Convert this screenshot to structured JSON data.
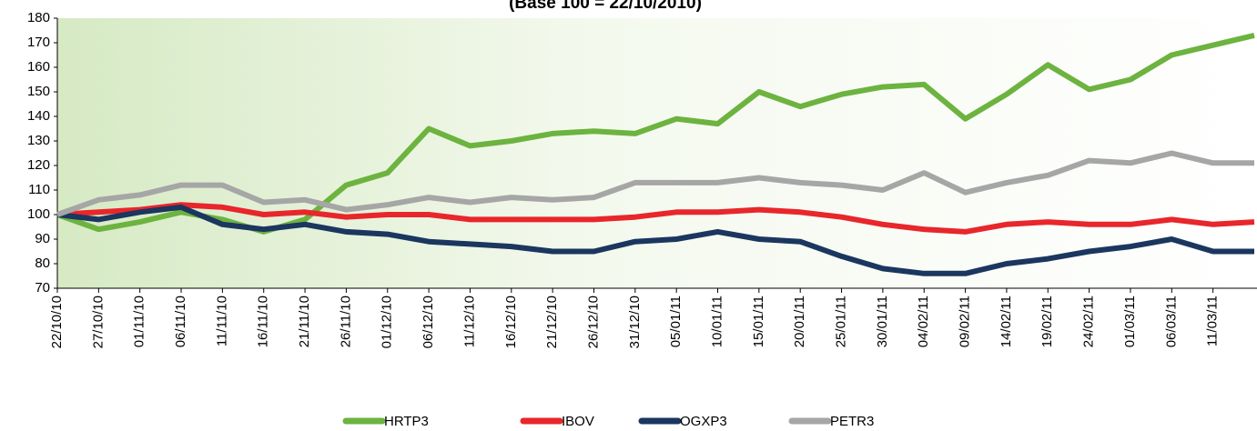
{
  "chart_data": {
    "type": "line",
    "title": "(Base 100 = 22/10/2010)",
    "categories": [
      "22/10/10",
      "27/10/10",
      "01/11/10",
      "06/11/10",
      "11/11/10",
      "16/11/10",
      "21/11/10",
      "26/11/10",
      "01/12/10",
      "06/12/10",
      "11/12/10",
      "16/12/10",
      "21/12/10",
      "26/12/10",
      "31/12/10",
      "05/01/11",
      "10/01/11",
      "15/01/11",
      "20/01/11",
      "25/01/11",
      "30/01/11",
      "04/02/11",
      "09/02/11",
      "14/02/11",
      "19/02/11",
      "24/02/11",
      "01/03/11",
      "06/03/11",
      "11/03/11",
      null
    ],
    "series": [
      {
        "name": "HRTP3",
        "color": "#6cb33f",
        "values": [
          100,
          94,
          97,
          101,
          98,
          93,
          98,
          112,
          117,
          135,
          128,
          130,
          133,
          134,
          133,
          139,
          137,
          150,
          144,
          149,
          152,
          153,
          139,
          149,
          161,
          151,
          155,
          165,
          169,
          173
        ]
      },
      {
        "name": "IBOV",
        "color": "#e8262b",
        "values": [
          100,
          101,
          102,
          104,
          103,
          100,
          101,
          99,
          100,
          100,
          98,
          98,
          98,
          98,
          99,
          101,
          101,
          102,
          101,
          99,
          96,
          94,
          93,
          96,
          97,
          96,
          96,
          98,
          96,
          97
        ]
      },
      {
        "name": "OGXP3",
        "color": "#1b365f",
        "values": [
          100,
          98,
          101,
          103,
          96,
          94,
          96,
          93,
          92,
          89,
          88,
          87,
          85,
          85,
          89,
          90,
          93,
          90,
          89,
          83,
          78,
          76,
          76,
          80,
          82,
          85,
          87,
          90,
          85,
          85
        ]
      },
      {
        "name": "PETR3",
        "color": "#a6a6a6",
        "values": [
          100,
          106,
          108,
          112,
          112,
          105,
          106,
          102,
          104,
          107,
          105,
          107,
          106,
          107,
          113,
          113,
          113,
          115,
          113,
          112,
          110,
          117,
          109,
          113,
          116,
          122,
          121,
          125,
          121,
          121
        ]
      }
    ],
    "ylim": [
      70,
      180
    ],
    "yticks": [
      70,
      80,
      90,
      100,
      110,
      120,
      130,
      140,
      150,
      160,
      170,
      180
    ],
    "grid": false,
    "legend": "bottom"
  }
}
